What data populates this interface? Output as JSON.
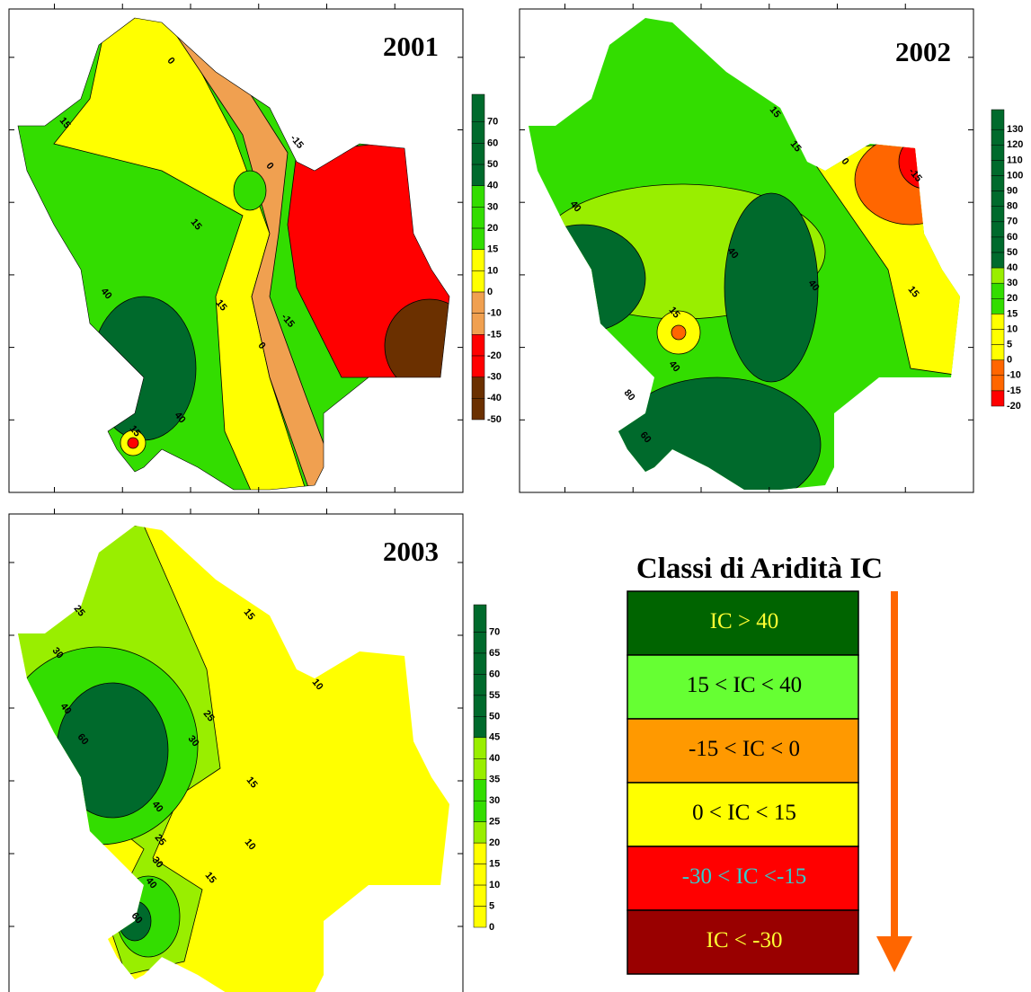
{
  "panels": [
    {
      "title": "2001",
      "colorbar": {
        "labels": [
          "70",
          "60",
          "50",
          "40",
          "30",
          "20",
          "15",
          "10",
          "0",
          "-10",
          "-15",
          "-20",
          "-30",
          "-40",
          "-50"
        ],
        "colors": [
          "#006a2c",
          "#006a2c",
          "#006a2c",
          "#006a2c",
          "#33dd00",
          "#33dd00",
          "#33dd00",
          "#ffff00",
          "#ffff00",
          "#f0a050",
          "#f0a050",
          "#ff0000",
          "#ff0000",
          "#6b3000",
          "#6b3000"
        ]
      },
      "contour_labels": [
        "0",
        "15",
        "15",
        "0",
        "-15",
        "15",
        "-15",
        "0",
        "40",
        "40",
        "15"
      ]
    },
    {
      "title": "2002",
      "colorbar": {
        "labels": [
          "130",
          "120",
          "110",
          "100",
          "90",
          "80",
          "70",
          "60",
          "50",
          "40",
          "30",
          "20",
          "15",
          "10",
          "5",
          "0",
          "-10",
          "-15",
          "-20"
        ],
        "colors": [
          "#006a2c",
          "#006a2c",
          "#006a2c",
          "#006a2c",
          "#006a2c",
          "#006a2c",
          "#006a2c",
          "#006a2c",
          "#006a2c",
          "#006a2c",
          "#99ee00",
          "#33dd00",
          "#33dd00",
          "#ffff00",
          "#ffff00",
          "#ffff00",
          "#ff6600",
          "#ff6600",
          "#ff0000"
        ]
      },
      "contour_labels": [
        "15",
        "15",
        "0",
        "-15",
        "40",
        "40",
        "40",
        "15",
        "15",
        "40",
        "80",
        "60"
      ]
    },
    {
      "title": "2003",
      "colorbar": {
        "labels": [
          "70",
          "65",
          "60",
          "55",
          "50",
          "45",
          "40",
          "35",
          "30",
          "25",
          "20",
          "15",
          "10",
          "5",
          "0"
        ],
        "colors": [
          "#006a2c",
          "#006a2c",
          "#006a2c",
          "#006a2c",
          "#006a2c",
          "#006a2c",
          "#99ee00",
          "#99ee00",
          "#33dd00",
          "#33dd00",
          "#99ee00",
          "#ffff00",
          "#ffff00",
          "#ffff00",
          "#ffff00"
        ]
      },
      "contour_labels": [
        "25",
        "30",
        "40",
        "60",
        "25",
        "30",
        "15",
        "15",
        "10",
        "10",
        "40",
        "25",
        "30",
        "40",
        "60",
        "15"
      ]
    }
  ],
  "legend": {
    "title": "Classi di Aridità IC",
    "classes": [
      {
        "label": "IC > 40",
        "color": "#006400",
        "text_color": "#ffff33"
      },
      {
        "label": "15 < IC < 40",
        "color": "#66ff33",
        "text_color": "#000000"
      },
      {
        "label": "-15 < IC < 0",
        "color": "#ff9900",
        "text_color": "#000000"
      },
      {
        "label": "0 < IC < 15",
        "color": "#ffff00",
        "text_color": "#000000"
      },
      {
        "label": "-30 < IC <-15",
        "color": "#ff0000",
        "text_color": "#33cccc"
      },
      {
        "label": "IC < -30",
        "color": "#990000",
        "text_color": "#ffff33"
      }
    ]
  }
}
